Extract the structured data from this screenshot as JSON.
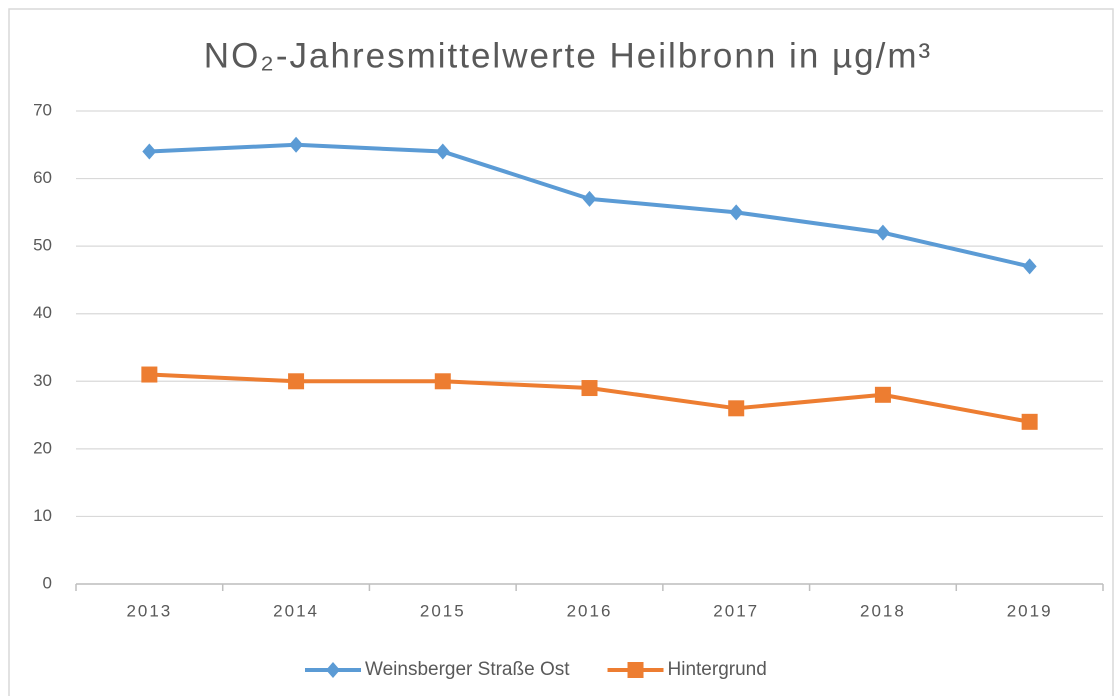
{
  "chart_data": {
    "type": "line",
    "title": "NO₂-Jahresmittelwerte Heilbronn in µg/m³",
    "categories": [
      "2013",
      "2014",
      "2015",
      "2016",
      "2017",
      "2018",
      "2019"
    ],
    "series": [
      {
        "name": "Weinsberger Straße Ost",
        "color": "#5b9bd5",
        "marker": "diamond",
        "values": [
          64,
          65,
          64,
          57,
          55,
          52,
          47
        ]
      },
      {
        "name": "Hintergrund",
        "color": "#ed7d31",
        "marker": "square",
        "values": [
          31,
          30,
          30,
          29,
          26,
          28,
          24
        ]
      }
    ],
    "ylim": [
      0,
      70
    ],
    "yticks": [
      0,
      10,
      20,
      30,
      40,
      50,
      60,
      70
    ],
    "grid": true,
    "legend": "bottom"
  }
}
